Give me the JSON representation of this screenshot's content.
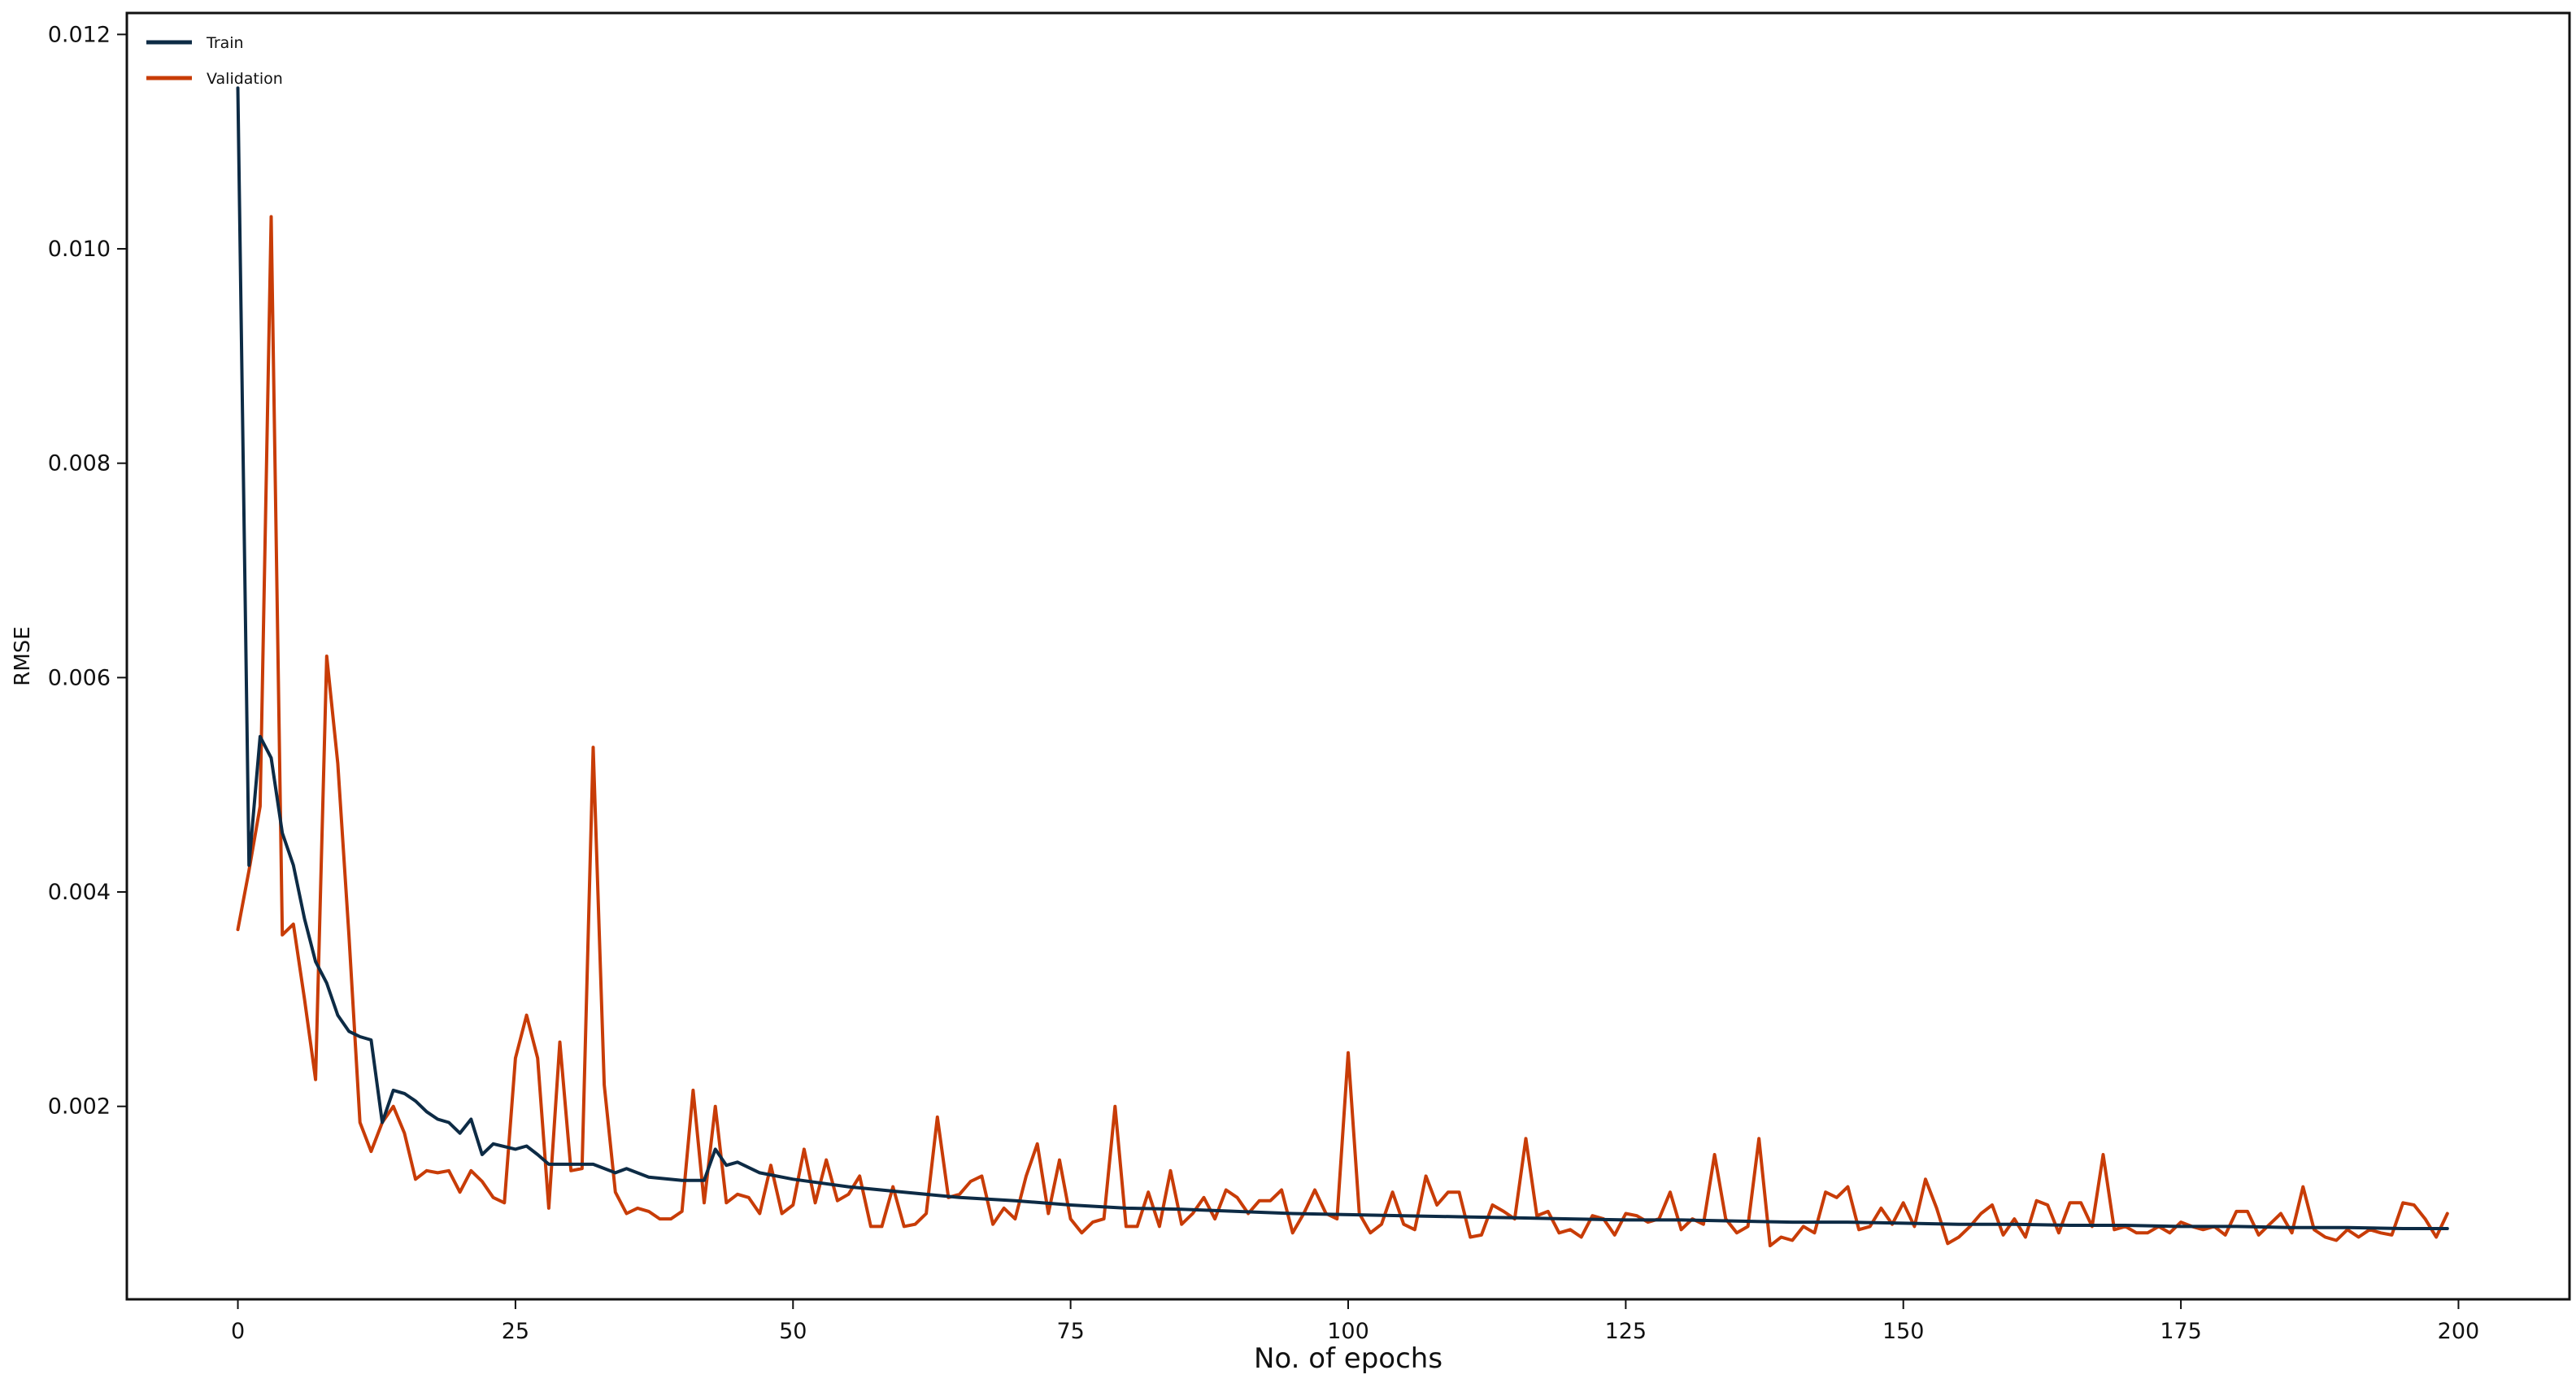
{
  "chart_data": {
    "type": "line",
    "title": "",
    "xlabel": "No. of epochs",
    "ylabel": "RMSE",
    "xlim": [
      -10,
      210
    ],
    "ylim": [
      0.0002,
      0.0122
    ],
    "x_ticks": [
      0,
      25,
      50,
      75,
      100,
      125,
      150,
      175,
      200
    ],
    "y_ticks": [
      0.002,
      0.004,
      0.006,
      0.008,
      0.01,
      0.012
    ],
    "y_tick_labels": [
      "0.002",
      "0.004",
      "0.006",
      "0.008",
      "0.010",
      "0.012"
    ],
    "grid": false,
    "legend_position": "top-left",
    "series": [
      {
        "name": "Train",
        "color": "#0d2b45",
        "points": [
          [
            0,
            0.0115
          ],
          [
            1,
            0.00425
          ],
          [
            2,
            0.00545
          ],
          [
            3,
            0.00525
          ],
          [
            4,
            0.00455
          ],
          [
            5,
            0.00425
          ],
          [
            6,
            0.00375
          ],
          [
            7,
            0.00335
          ],
          [
            8,
            0.00315
          ],
          [
            9,
            0.00285
          ],
          [
            10,
            0.0027
          ],
          [
            11,
            0.00265
          ],
          [
            12,
            0.00262
          ],
          [
            13,
            0.00185
          ],
          [
            14,
            0.00215
          ],
          [
            15,
            0.00212
          ],
          [
            16,
            0.00205
          ],
          [
            17,
            0.00195
          ],
          [
            18,
            0.00188
          ],
          [
            19,
            0.00185
          ],
          [
            20,
            0.00175
          ],
          [
            21,
            0.00188
          ],
          [
            22,
            0.00155
          ],
          [
            23,
            0.00165
          ],
          [
            25,
            0.0016
          ],
          [
            26,
            0.00163
          ],
          [
            27,
            0.00155
          ],
          [
            28,
            0.00146
          ],
          [
            30,
            0.00146
          ],
          [
            32,
            0.00146
          ],
          [
            34,
            0.00138
          ],
          [
            35,
            0.00142
          ],
          [
            37,
            0.00134
          ],
          [
            40,
            0.00131
          ],
          [
            42,
            0.00131
          ],
          [
            43,
            0.0016
          ],
          [
            44,
            0.00145
          ],
          [
            45,
            0.00148
          ],
          [
            47,
            0.00138
          ],
          [
            50,
            0.00132
          ],
          [
            55,
            0.00125
          ],
          [
            60,
            0.0012
          ],
          [
            65,
            0.00115
          ],
          [
            70,
            0.00112
          ],
          [
            75,
            0.00108
          ],
          [
            80,
            0.00105
          ],
          [
            85,
            0.00104
          ],
          [
            90,
            0.00102
          ],
          [
            95,
            0.001
          ],
          [
            100,
            0.00099
          ],
          [
            105,
            0.00098
          ],
          [
            110,
            0.00097
          ],
          [
            115,
            0.00096
          ],
          [
            120,
            0.00095
          ],
          [
            125,
            0.00094
          ],
          [
            130,
            0.00094
          ],
          [
            135,
            0.00093
          ],
          [
            140,
            0.00092
          ],
          [
            145,
            0.00092
          ],
          [
            150,
            0.00091
          ],
          [
            155,
            0.0009
          ],
          [
            160,
            0.0009
          ],
          [
            165,
            0.00089
          ],
          [
            170,
            0.00089
          ],
          [
            175,
            0.00088
          ],
          [
            180,
            0.00088
          ],
          [
            185,
            0.00087
          ],
          [
            190,
            0.00087
          ],
          [
            195,
            0.00086
          ],
          [
            199,
            0.00086
          ]
        ]
      },
      {
        "name": "Validation",
        "color": "#c83c07",
        "points": [
          [
            0,
            0.00365
          ],
          [
            1,
            0.0042
          ],
          [
            2,
            0.0048
          ],
          [
            3,
            0.0103
          ],
          [
            4,
            0.0036
          ],
          [
            5,
            0.0037
          ],
          [
            6,
            0.003
          ],
          [
            7,
            0.00225
          ],
          [
            8,
            0.0062
          ],
          [
            9,
            0.0052
          ],
          [
            10,
            0.0036
          ],
          [
            11,
            0.00185
          ],
          [
            12,
            0.00158
          ],
          [
            13,
            0.00185
          ],
          [
            14,
            0.002
          ],
          [
            15,
            0.00175
          ],
          [
            16,
            0.00132
          ],
          [
            17,
            0.0014
          ],
          [
            18,
            0.00138
          ],
          [
            19,
            0.0014
          ],
          [
            20,
            0.0012
          ],
          [
            21,
            0.0014
          ],
          [
            22,
            0.0013
          ],
          [
            23,
            0.00115
          ],
          [
            24,
            0.0011
          ],
          [
            25,
            0.00245
          ],
          [
            26,
            0.00285
          ],
          [
            27,
            0.00245
          ],
          [
            28,
            0.00105
          ],
          [
            29,
            0.0026
          ],
          [
            30,
            0.0014
          ],
          [
            31,
            0.00142
          ],
          [
            32,
            0.00535
          ],
          [
            33,
            0.0022
          ],
          [
            34,
            0.0012
          ],
          [
            35,
            0.001
          ],
          [
            36,
            0.00105
          ],
          [
            37,
            0.00102
          ],
          [
            38,
            0.00095
          ],
          [
            39,
            0.00095
          ],
          [
            40,
            0.00102
          ],
          [
            41,
            0.00215
          ],
          [
            42,
            0.0011
          ],
          [
            43,
            0.002
          ],
          [
            44,
            0.0011
          ],
          [
            45,
            0.00118
          ],
          [
            46,
            0.00115
          ],
          [
            47,
            0.001
          ],
          [
            48,
            0.00145
          ],
          [
            49,
            0.001
          ],
          [
            50,
            0.00108
          ],
          [
            51,
            0.0016
          ],
          [
            52,
            0.0011
          ],
          [
            53,
            0.0015
          ],
          [
            54,
            0.00112
          ],
          [
            55,
            0.00118
          ],
          [
            56,
            0.00135
          ],
          [
            57,
            0.00088
          ],
          [
            58,
            0.00088
          ],
          [
            59,
            0.00125
          ],
          [
            60,
            0.00088
          ],
          [
            61,
            0.0009
          ],
          [
            62,
            0.001
          ],
          [
            63,
            0.0019
          ],
          [
            64,
            0.00115
          ],
          [
            65,
            0.00118
          ],
          [
            66,
            0.0013
          ],
          [
            67,
            0.00135
          ],
          [
            68,
            0.0009
          ],
          [
            69,
            0.00105
          ],
          [
            70,
            0.00095
          ],
          [
            71,
            0.00135
          ],
          [
            72,
            0.00165
          ],
          [
            73,
            0.001
          ],
          [
            74,
            0.0015
          ],
          [
            75,
            0.00095
          ],
          [
            76,
            0.00082
          ],
          [
            77,
            0.00092
          ],
          [
            78,
            0.00095
          ],
          [
            79,
            0.002
          ],
          [
            80,
            0.00088
          ],
          [
            81,
            0.00088
          ],
          [
            82,
            0.0012
          ],
          [
            83,
            0.00088
          ],
          [
            84,
            0.0014
          ],
          [
            85,
            0.0009
          ],
          [
            86,
            0.001
          ],
          [
            87,
            0.00115
          ],
          [
            88,
            0.00095
          ],
          [
            89,
            0.00122
          ],
          [
            90,
            0.00115
          ],
          [
            91,
            0.001
          ],
          [
            92,
            0.00112
          ],
          [
            93,
            0.00112
          ],
          [
            94,
            0.00122
          ],
          [
            95,
            0.00082
          ],
          [
            96,
            0.001
          ],
          [
            97,
            0.00122
          ],
          [
            98,
            0.001
          ],
          [
            99,
            0.00095
          ],
          [
            100,
            0.0025
          ],
          [
            101,
            0.001
          ],
          [
            102,
            0.00082
          ],
          [
            103,
            0.0009
          ],
          [
            104,
            0.0012
          ],
          [
            105,
            0.0009
          ],
          [
            106,
            0.00085
          ],
          [
            107,
            0.00135
          ],
          [
            108,
            0.00108
          ],
          [
            109,
            0.0012
          ],
          [
            110,
            0.0012
          ],
          [
            111,
            0.00078
          ],
          [
            112,
            0.0008
          ],
          [
            113,
            0.00108
          ],
          [
            114,
            0.00102
          ],
          [
            115,
            0.00095
          ],
          [
            116,
            0.0017
          ],
          [
            117,
            0.00098
          ],
          [
            118,
            0.00102
          ],
          [
            119,
            0.00082
          ],
          [
            120,
            0.00085
          ],
          [
            121,
            0.00078
          ],
          [
            122,
            0.00098
          ],
          [
            123,
            0.00095
          ],
          [
            124,
            0.0008
          ],
          [
            125,
            0.001
          ],
          [
            126,
            0.00098
          ],
          [
            127,
            0.00092
          ],
          [
            128,
            0.00095
          ],
          [
            129,
            0.0012
          ],
          [
            130,
            0.00085
          ],
          [
            131,
            0.00095
          ],
          [
            132,
            0.0009
          ],
          [
            133,
            0.00155
          ],
          [
            134,
            0.00095
          ],
          [
            135,
            0.00082
          ],
          [
            136,
            0.00088
          ],
          [
            137,
            0.0017
          ],
          [
            138,
            0.0007
          ],
          [
            139,
            0.00078
          ],
          [
            140,
            0.00075
          ],
          [
            141,
            0.00088
          ],
          [
            142,
            0.00082
          ],
          [
            143,
            0.0012
          ],
          [
            144,
            0.00115
          ],
          [
            145,
            0.00125
          ],
          [
            146,
            0.00085
          ],
          [
            147,
            0.00088
          ],
          [
            148,
            0.00105
          ],
          [
            149,
            0.0009
          ],
          [
            150,
            0.0011
          ],
          [
            151,
            0.00088
          ],
          [
            152,
            0.00132
          ],
          [
            153,
            0.00105
          ],
          [
            154,
            0.00072
          ],
          [
            155,
            0.00078
          ],
          [
            156,
            0.00088
          ],
          [
            157,
            0.001
          ],
          [
            158,
            0.00108
          ],
          [
            159,
            0.0008
          ],
          [
            160,
            0.00095
          ],
          [
            161,
            0.00078
          ],
          [
            162,
            0.00112
          ],
          [
            163,
            0.00108
          ],
          [
            164,
            0.00082
          ],
          [
            165,
            0.0011
          ],
          [
            166,
            0.0011
          ],
          [
            167,
            0.00088
          ],
          [
            168,
            0.00155
          ],
          [
            169,
            0.00085
          ],
          [
            170,
            0.00088
          ],
          [
            171,
            0.00082
          ],
          [
            172,
            0.00082
          ],
          [
            173,
            0.00088
          ],
          [
            174,
            0.00082
          ],
          [
            175,
            0.00092
          ],
          [
            176,
            0.00088
          ],
          [
            177,
            0.00085
          ],
          [
            178,
            0.00088
          ],
          [
            179,
            0.0008
          ],
          [
            180,
            0.00102
          ],
          [
            181,
            0.00102
          ],
          [
            182,
            0.0008
          ],
          [
            183,
            0.0009
          ],
          [
            184,
            0.001
          ],
          [
            185,
            0.00082
          ],
          [
            186,
            0.00125
          ],
          [
            187,
            0.00085
          ],
          [
            188,
            0.00078
          ],
          [
            189,
            0.00075
          ],
          [
            190,
            0.00085
          ],
          [
            191,
            0.00078
          ],
          [
            192,
            0.00085
          ],
          [
            193,
            0.00082
          ],
          [
            194,
            0.0008
          ],
          [
            195,
            0.0011
          ],
          [
            196,
            0.00108
          ],
          [
            197,
            0.00095
          ],
          [
            198,
            0.00078
          ],
          [
            199,
            0.001
          ]
        ]
      }
    ]
  }
}
